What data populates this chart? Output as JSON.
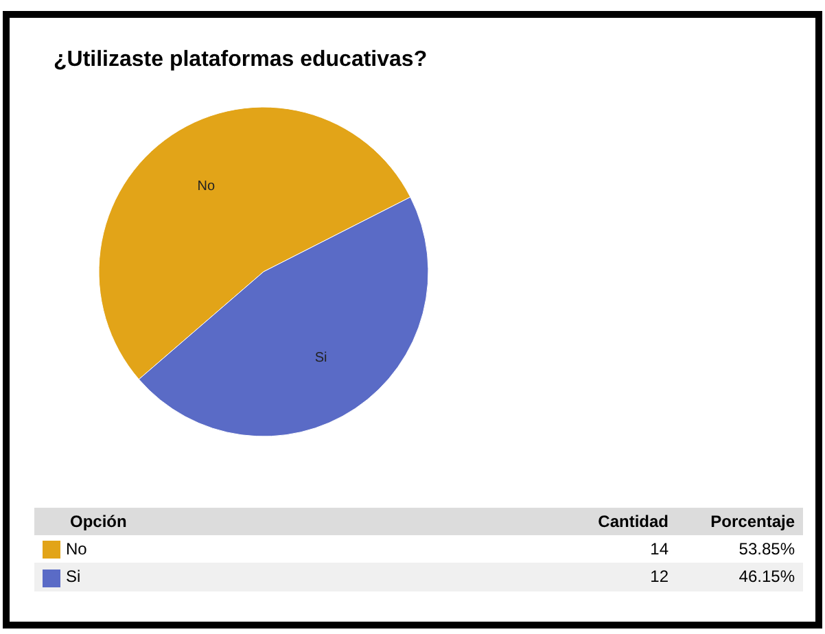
{
  "chart_data": {
    "type": "pie",
    "title": "¿Utilizaste plataformas educativas?",
    "categories": [
      "No",
      "Si"
    ],
    "values": [
      53.85,
      46.15
    ],
    "colors": [
      "#e2a418",
      "#5a6bc6"
    ],
    "value_labels": [
      "53.85%",
      "46.15%"
    ],
    "legend": "bottom",
    "annotations": [
      "Opción",
      "Cantidad",
      "Porcentaje",
      "14",
      "12"
    ]
  }
}
